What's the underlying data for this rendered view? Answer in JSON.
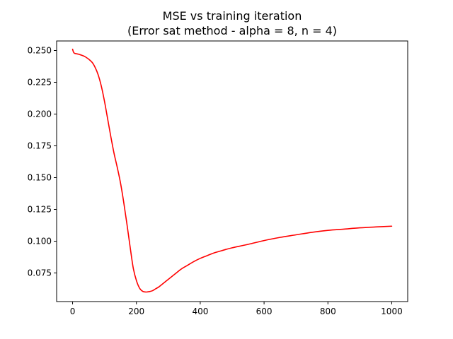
{
  "chart_data": {
    "type": "line",
    "title_line1": "MSE vs training iteration",
    "title_line2": "(Error sat method - alpha = 8, n = 4)",
    "xlabel": "",
    "ylabel": "",
    "xlim": [
      -50,
      1050
    ],
    "ylim": [
      0.0525,
      0.2575
    ],
    "xticks": [
      0,
      200,
      400,
      600,
      800,
      1000
    ],
    "xtick_labels": [
      "0",
      "200",
      "400",
      "600",
      "800",
      "1000"
    ],
    "yticks": [
      0.075,
      0.1,
      0.125,
      0.15,
      0.175,
      0.2,
      0.225,
      0.25
    ],
    "ytick_labels": [
      "0.075",
      "0.100",
      "0.125",
      "0.150",
      "0.175",
      "0.200",
      "0.225",
      "0.250"
    ],
    "grid": false,
    "series": [
      {
        "color": "#ff0000",
        "x": [
          0,
          5,
          20,
          40,
          60,
          70,
          80,
          90,
          100,
          110,
          120,
          130,
          140,
          150,
          160,
          170,
          180,
          190,
          200,
          210,
          220,
          230,
          240,
          250,
          260,
          270,
          280,
          300,
          320,
          340,
          360,
          380,
          400,
          420,
          440,
          460,
          480,
          500,
          550,
          600,
          650,
          700,
          750,
          800,
          850,
          900,
          950,
          1000
        ],
        "y": [
          0.251,
          0.248,
          0.247,
          0.245,
          0.241,
          0.237,
          0.231,
          0.222,
          0.21,
          0.196,
          0.182,
          0.169,
          0.158,
          0.146,
          0.131,
          0.114,
          0.096,
          0.079,
          0.069,
          0.063,
          0.0605,
          0.06,
          0.0603,
          0.061,
          0.0625,
          0.064,
          0.066,
          0.07,
          0.074,
          0.078,
          0.081,
          0.084,
          0.0865,
          0.0885,
          0.0905,
          0.092,
          0.0935,
          0.0948,
          0.0975,
          0.1005,
          0.103,
          0.105,
          0.107,
          0.1085,
          0.1095,
          0.1105,
          0.1112,
          0.1118
        ]
      }
    ]
  }
}
